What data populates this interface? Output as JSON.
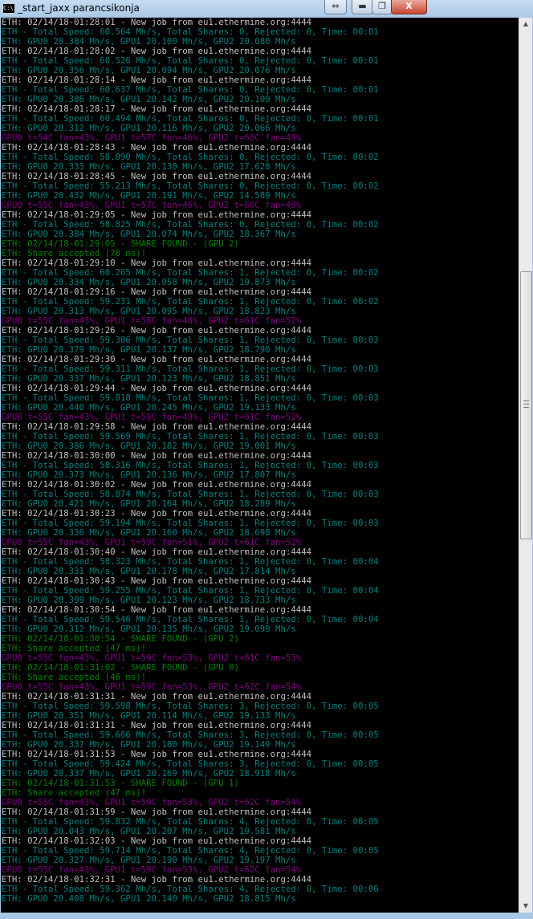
{
  "window": {
    "title": "_start_jaxx parancsikonja",
    "icon": "console-icon",
    "icon_label": "C:\\",
    "buttons": {
      "resize": "⇔",
      "minimize": "▬",
      "maximize": "❐",
      "close": "X"
    }
  },
  "colors": {
    "background": "#000000",
    "job": "#c0c0c0",
    "speed": "#008080",
    "temp": "#800080",
    "share": "#008000"
  },
  "scrollbar": {
    "up": "▲",
    "down": "▼",
    "position_percent": 30
  },
  "lines": [
    [
      "job",
      "ETH: 02/14/18-01:28:01 - New job from eu1.ethermine.org:4444"
    ],
    [
      "speed",
      "ETH - Total Speed: 60.564 Mh/s, Total Shares: 0, Rejected: 0, Time: 00:01"
    ],
    [
      "speed",
      "ETH: GPU0 20.384 Mh/s, GPU1 20.100 Mh/s, GPU2 20.080 Mh/s"
    ],
    [
      "job",
      "ETH: 02/14/18-01:28:02 - New job from eu1.ethermine.org:4444"
    ],
    [
      "speed",
      "ETH - Total Speed: 60.526 Mh/s, Total Shares: 0, Rejected: 0, Time: 00:01"
    ],
    [
      "speed",
      "ETH: GPU0 20.356 Mh/s, GPU1 20.094 Mh/s, GPU2 20.076 Mh/s"
    ],
    [
      "job",
      "ETH: 02/14/18-01:28:14 - New job from eu1.ethermine.org:4444"
    ],
    [
      "speed",
      "ETH - Total Speed: 60.637 Mh/s, Total Shares: 0, Rejected: 0, Time: 00:01"
    ],
    [
      "speed",
      "ETH: GPU0 20.386 Mh/s, GPU1 20.142 Mh/s, GPU2 20.109 Mh/s"
    ],
    [
      "job",
      "ETH: 02/14/18-01:28:17 - New job from eu1.ethermine.org:4444"
    ],
    [
      "speed",
      "ETH - Total Speed: 60.494 Mh/s, Total Shares: 0, Rejected: 0, Time: 00:01"
    ],
    [
      "speed",
      "ETH: GPU0 20.312 Mh/s, GPU1 20.116 Mh/s, GPU2 20.066 Mh/s"
    ],
    [
      "temp",
      "GPU0 t=54C fan=43%, GPU1 t=57C fan=46%, GPU2 t=60C fan=49%"
    ],
    [
      "job",
      "ETH: 02/14/18-01:28:43 - New job from eu1.ethermine.org:4444"
    ],
    [
      "speed",
      "ETH - Total Speed: 58.090 Mh/s, Total Shares: 0, Rejected: 0, Time: 00:02"
    ],
    [
      "speed",
      "ETH: GPU0 20.333 Mh/s, GPU1 20.130 Mh/s, GPU2 17.628 Mh/s"
    ],
    [
      "job",
      "ETH: 02/14/18-01:28:45 - New job from eu1.ethermine.org:4444"
    ],
    [
      "speed",
      "ETH - Total Speed: 55.213 Mh/s, Total Shares: 0, Rejected: 0, Time: 00:02"
    ],
    [
      "speed",
      "ETH: GPU0 20.432 Mh/s, GPU1 20.191 Mh/s, GPU2 14.589 Mh/s"
    ],
    [
      "temp",
      "GPU0 t=55C fan=43%, GPU1 t=57C fan=46%, GPU2 t=60C fan=49%"
    ],
    [
      "job",
      "ETH: 02/14/18-01:29:05 - New job from eu1.ethermine.org:4444"
    ],
    [
      "speed",
      "ETH - Total Speed: 58.825 Mh/s, Total Shares: 0, Rejected: 0, Time: 00:02"
    ],
    [
      "speed",
      "ETH: GPU0 20.384 Mh/s, GPU1 20.074 Mh/s, GPU2 18.367 Mh/s"
    ],
    [
      "share",
      "ETH: 02/14/18-01:29:05 - SHARE FOUND - (GPU 2)"
    ],
    [
      "share",
      "ETH: Share accepted (78 ms)!"
    ],
    [
      "job",
      "ETH: 02/14/18-01:29:10 - New job from eu1.ethermine.org:4444"
    ],
    [
      "speed",
      "ETH - Total Speed: 60.265 Mh/s, Total Shares: 1, Rejected: 0, Time: 00:02"
    ],
    [
      "speed",
      "ETH: GPU0 20.334 Mh/s, GPU1 20.058 Mh/s, GPU2 19.873 Mh/s"
    ],
    [
      "job",
      "ETH: 02/14/18-01:29:16 - New job from eu1.ethermine.org:4444"
    ],
    [
      "speed",
      "ETH - Total Speed: 59.231 Mh/s, Total Shares: 1, Rejected: 0, Time: 00:02"
    ],
    [
      "speed",
      "ETH: GPU0 20.313 Mh/s, GPU1 20.095 Mh/s, GPU2 18.823 Mh/s"
    ],
    [
      "temp",
      "GPU0 t=55C fan=43%, GPU1 t=58C fan=48%, GPU2 t=61C fan=52%"
    ],
    [
      "job",
      "ETH: 02/14/18-01:29:26 - New job from eu1.ethermine.org:4444"
    ],
    [
      "speed",
      "ETH - Total Speed: 59.306 Mh/s, Total Shares: 1, Rejected: 0, Time: 00:03"
    ],
    [
      "speed",
      "ETH: GPU0 20.379 Mh/s, GPU1 20.137 Mh/s, GPU2 18.790 Mh/s"
    ],
    [
      "job",
      "ETH: 02/14/18-01:29:30 - New job from eu1.ethermine.org:4444"
    ],
    [
      "speed",
      "ETH - Total Speed: 59.311 Mh/s, Total Shares: 1, Rejected: 0, Time: 00:03"
    ],
    [
      "speed",
      "ETH: GPU0 20.337 Mh/s, GPU1 20.123 Mh/s, GPU2 18.851 Mh/s"
    ],
    [
      "job",
      "ETH: 02/14/18-01:29:44 - New job from eu1.ethermine.org:4444"
    ],
    [
      "speed",
      "ETH - Total Speed: 59.818 Mh/s, Total Shares: 1, Rejected: 0, Time: 00:03"
    ],
    [
      "speed",
      "ETH: GPU0 20.440 Mh/s, GPU1 20.245 Mh/s, GPU2 19.133 Mh/s"
    ],
    [
      "temp",
      "GPU0 t=55C fan=43%, GPU1 t=59C fan=49%, GPU2 t=61C fan=52%"
    ],
    [
      "job",
      "ETH: 02/14/18-01:29:58 - New job from eu1.ethermine.org:4444"
    ],
    [
      "speed",
      "ETH - Total Speed: 59.569 Mh/s, Total Shares: 1, Rejected: 0, Time: 00:03"
    ],
    [
      "speed",
      "ETH: GPU0 20.386 Mh/s, GPU1 20.182 Mh/s, GPU2 19.001 Mh/s"
    ],
    [
      "job",
      "ETH: 02/14/18-01:30:00 - New job from eu1.ethermine.org:4444"
    ],
    [
      "speed",
      "ETH - Total Speed: 58.316 Mh/s, Total Shares: 1, Rejected: 0, Time: 00:03"
    ],
    [
      "speed",
      "ETH: GPU0 20.373 Mh/s, GPU1 20.136 Mh/s, GPU2 17.807 Mh/s"
    ],
    [
      "job",
      "ETH: 02/14/18-01:30:02 - New job from eu1.ethermine.org:4444"
    ],
    [
      "speed",
      "ETH - Total Speed: 58.874 Mh/s, Total Shares: 1, Rejected: 0, Time: 00:03"
    ],
    [
      "speed",
      "ETH: GPU0 20.421 Mh/s, GPU1 20.164 Mh/s, GPU2 18.289 Mh/s"
    ],
    [
      "job",
      "ETH: 02/14/18-01:30:23 - New job from eu1.ethermine.org:4444"
    ],
    [
      "speed",
      "ETH - Total Speed: 59.194 Mh/s, Total Shares: 1, Rejected: 0, Time: 00:03"
    ],
    [
      "speed",
      "ETH: GPU0 20.336 Mh/s, GPU1 20.160 Mh/s, GPU2 18.698 Mh/s"
    ],
    [
      "temp",
      "GPU0 t=55C fan=43%, GPU1 t=59C fan=51%, GPU2 t=61C fan=52%"
    ],
    [
      "job",
      "ETH: 02/14/18-01:30:40 - New job from eu1.ethermine.org:4444"
    ],
    [
      "speed",
      "ETH - Total Speed: 58.323 Mh/s, Total Shares: 1, Rejected: 0, Time: 00:04"
    ],
    [
      "speed",
      "ETH: GPU0 20.331 Mh/s, GPU1 20.178 Mh/s, GPU2 17.814 Mh/s"
    ],
    [
      "job",
      "ETH: 02/14/18-01:30:43 - New job from eu1.ethermine.org:4444"
    ],
    [
      "speed",
      "ETH - Total Speed: 59.255 Mh/s, Total Shares: 1, Rejected: 0, Time: 00:04"
    ],
    [
      "speed",
      "ETH: GPU0 20.399 Mh/s, GPU1 20.123 Mh/s, GPU2 18.733 Mh/s"
    ],
    [
      "job",
      "ETH: 02/14/18-01:30:54 - New job from eu1.ethermine.org:4444"
    ],
    [
      "speed",
      "ETH - Total Speed: 59.546 Mh/s, Total Shares: 1, Rejected: 0, Time: 00:04"
    ],
    [
      "speed",
      "ETH: GPU0 20.312 Mh/s, GPU1 20.135 Mh/s, GPU2 19.099 Mh/s"
    ],
    [
      "share",
      "ETH: 02/14/18-01:30:54 - SHARE FOUND - (GPU 2)"
    ],
    [
      "share",
      "ETH: Share accepted (47 ms)!"
    ],
    [
      "temp",
      "GPU0 t=55C fan=43%, GPU1 t=59C fan=53%, GPU2 t=61C fan=53%"
    ],
    [
      "share",
      "ETH: 02/14/18-01:31:02 - SHARE FOUND - (GPU 0)"
    ],
    [
      "share",
      "ETH: Share accepted (46 ms)!"
    ],
    [
      "temp",
      "GPU0 t=55C fan=43%, GPU1 t=59C fan=53%, GPU2 t=62C fan=54%"
    ],
    [
      "job",
      "ETH: 02/14/18-01:31:31 - New job from eu1.ethermine.org:4444"
    ],
    [
      "speed",
      "ETH - Total Speed: 59.598 Mh/s, Total Shares: 3, Rejected: 0, Time: 00:05"
    ],
    [
      "speed",
      "ETH: GPU0 20.351 Mh/s, GPU1 20.114 Mh/s, GPU2 19.133 Mh/s"
    ],
    [
      "job",
      "ETH: 02/14/18-01:31:31 - New job from eu1.ethermine.org:4444"
    ],
    [
      "speed",
      "ETH - Total Speed: 59.666 Mh/s, Total Shares: 3, Rejected: 0, Time: 00:05"
    ],
    [
      "speed",
      "ETH: GPU0 20.337 Mh/s, GPU1 20.180 Mh/s, GPU2 19.149 Mh/s"
    ],
    [
      "job",
      "ETH: 02/14/18-01:31:53 - New job from eu1.ethermine.org:4444"
    ],
    [
      "speed",
      "ETH - Total Speed: 59.424 Mh/s, Total Shares: 3, Rejected: 0, Time: 00:05"
    ],
    [
      "speed",
      "ETH: GPU0 20.337 Mh/s, GPU1 20.169 Mh/s, GPU2 18.918 Mh/s"
    ],
    [
      "share",
      "ETH: 02/14/18-01:31:53 - SHARE FOUND - (GPU 1)"
    ],
    [
      "share",
      "ETH: Share accepted (47 ms)!"
    ],
    [
      "temp",
      "GPU0 t=55C fan=43%, GPU1 t=59C fan=53%, GPU2 t=62C fan=54%"
    ],
    [
      "job",
      "ETH: 02/14/18-01:31:59 - New job from eu1.ethermine.org:4444"
    ],
    [
      "speed",
      "ETH - Total Speed: 59.832 Mh/s, Total Shares: 4, Rejected: 0, Time: 00:05"
    ],
    [
      "speed",
      "ETH: GPU0 20.043 Mh/s, GPU1 20.207 Mh/s, GPU2 19.581 Mh/s"
    ],
    [
      "job",
      "ETH: 02/14/18-01:32:03 - New job from eu1.ethermine.org:4444"
    ],
    [
      "speed",
      "ETH - Total Speed: 59.714 Mh/s, Total Shares: 4, Rejected: 0, Time: 00:05"
    ],
    [
      "speed",
      "ETH: GPU0 20.327 Mh/s, GPU1 20.190 Mh/s, GPU2 19.197 Mh/s"
    ],
    [
      "temp",
      "GPU0 t=55C fan=43%, GPU1 t=59C fan=53%, GPU2 t=62C fan=54%"
    ],
    [
      "job",
      "ETH: 02/14/18-01:32:31 - New job from eu1.ethermine.org:4444"
    ],
    [
      "speed",
      "ETH - Total Speed: 59.362 Mh/s, Total Shares: 4, Rejected: 0, Time: 00:06"
    ],
    [
      "speed",
      "ETH: GPU0 20.408 Mh/s, GPU1 20.140 Mh/s, GPU2 18.815 Mh/s"
    ]
  ]
}
